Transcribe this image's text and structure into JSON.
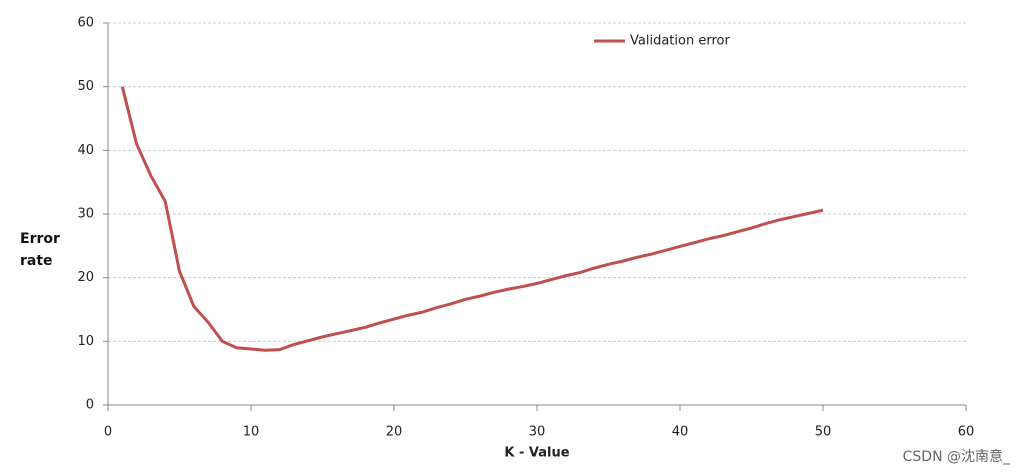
{
  "chart_data": {
    "type": "line",
    "xlabel": "K - Value",
    "ylabel": "Error rate",
    "x": [
      1,
      2,
      3,
      4,
      5,
      6,
      7,
      8,
      9,
      10,
      11,
      12,
      13,
      14,
      15,
      16,
      17,
      18,
      19,
      20,
      21,
      22,
      23,
      24,
      25,
      26,
      27,
      28,
      29,
      30,
      31,
      32,
      33,
      34,
      35,
      36,
      37,
      38,
      39,
      40,
      41,
      42,
      43,
      44,
      45,
      46,
      47,
      48,
      49,
      50
    ],
    "series": [
      {
        "name": "Validation error",
        "color": "#c0504d",
        "values": [
          50,
          41,
          36,
          32,
          21,
          15.5,
          13,
          10,
          9,
          8.8,
          8.6,
          8.7,
          9.5,
          10.1,
          10.7,
          11.2,
          11.7,
          12.2,
          12.9,
          13.5,
          14.1,
          14.6,
          15.3,
          15.9,
          16.6,
          17.1,
          17.7,
          18.2,
          18.6,
          19.1,
          19.7,
          20.3,
          20.8,
          21.5,
          22.1,
          22.6,
          23.2,
          23.7,
          24.3,
          24.9,
          25.5,
          26.1,
          26.6,
          27.2,
          27.8,
          28.5,
          29.1,
          29.6,
          30.1,
          30.6
        ]
      }
    ],
    "xlim": [
      0,
      60
    ],
    "xticks": [
      0,
      10,
      20,
      30,
      40,
      50,
      60
    ],
    "ylim": [
      0,
      60
    ],
    "yticks": [
      0,
      10,
      20,
      30,
      40,
      50,
      60
    ],
    "grid": true,
    "legend": "top",
    "watermark": "CSDN @沈南意_"
  }
}
